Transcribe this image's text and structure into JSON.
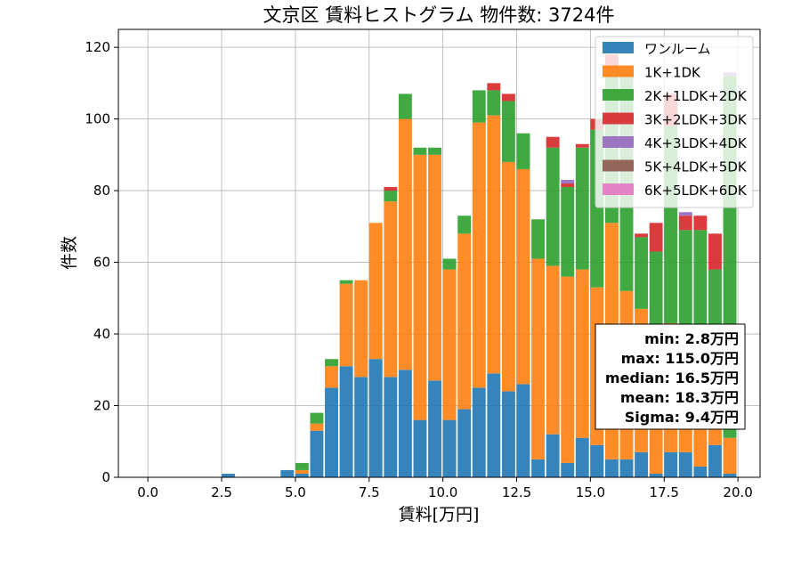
{
  "chart_data": {
    "type": "bar",
    "stacked": true,
    "title": "文京区 賃料ヒストグラム 物件数: 3724件",
    "xlabel": "賃料[万円]",
    "ylabel": "件数",
    "xlim": [
      -1,
      20.75
    ],
    "ylim": [
      0,
      125
    ],
    "xticks": [
      0,
      2.5,
      5,
      7.5,
      10,
      12.5,
      15,
      17.5,
      20
    ],
    "xtick_labels": [
      "0.0",
      "2.5",
      "5.0",
      "7.5",
      "10.0",
      "12.5",
      "15.0",
      "17.5",
      "20.0"
    ],
    "yticks": [
      0,
      20,
      40,
      60,
      80,
      100,
      120
    ],
    "ytick_labels": [
      "0",
      "20",
      "40",
      "60",
      "80",
      "100",
      "120"
    ],
    "grid": true,
    "legend_position": "top-right",
    "bin_width": 0.5,
    "bins": [
      2.5,
      4.5,
      5.0,
      5.5,
      6.0,
      6.5,
      7.0,
      7.5,
      8.0,
      8.5,
      9.0,
      9.5,
      10.0,
      10.5,
      11.0,
      11.5,
      12.0,
      12.5,
      13.0,
      13.5,
      14.0,
      14.5,
      15.0,
      15.5,
      16.0,
      16.5,
      17.0,
      17.5,
      18.0,
      18.5,
      19.0,
      19.5
    ],
    "series": [
      {
        "name": "ワンルーム",
        "color": "#1f77b4",
        "values": [
          1,
          2,
          1,
          13,
          25,
          31,
          28,
          33,
          28,
          30,
          16,
          27,
          16,
          19,
          25,
          29,
          24,
          26,
          5,
          12,
          4,
          11,
          9,
          5,
          5,
          7,
          1,
          7,
          7,
          3,
          9,
          1
        ]
      },
      {
        "name": "1K+1DK",
        "color": "#ff7f0e",
        "values": [
          0,
          0,
          1,
          2,
          6,
          23,
          27,
          38,
          49,
          70,
          74,
          63,
          42,
          49,
          74,
          72,
          64,
          60,
          56,
          47,
          52,
          47,
          44,
          66,
          47,
          40,
          40,
          36,
          22,
          29,
          12,
          10
        ]
      },
      {
        "name": "2K+1LDK+2DK",
        "color": "#2ca02c",
        "values": [
          0,
          0,
          2,
          3,
          2,
          1,
          0,
          0,
          3,
          7,
          2,
          2,
          3,
          5,
          9,
          7,
          17,
          10,
          11,
          33,
          25,
          34,
          44,
          43,
          60,
          20,
          22,
          55,
          40,
          37,
          37,
          101
        ]
      },
      {
        "name": "3K+2LDK+3DK",
        "color": "#d62728",
        "values": [
          0,
          0,
          0,
          0,
          0,
          0,
          0,
          0,
          1,
          0,
          0,
          0,
          0,
          0,
          0,
          2,
          2,
          0,
          0,
          3,
          1,
          1,
          3,
          4,
          1,
          1,
          8,
          9,
          4,
          4,
          10,
          0
        ]
      },
      {
        "name": "4K+3LDK+4DK",
        "color": "#9467bd",
        "values": [
          0,
          0,
          0,
          0,
          0,
          0,
          0,
          0,
          0,
          0,
          0,
          0,
          0,
          0,
          0,
          0,
          0,
          0,
          0,
          0,
          1,
          0,
          0,
          0,
          0,
          0,
          0,
          0,
          1,
          0,
          0,
          1
        ]
      },
      {
        "name": "5K+4LDK+5DK",
        "color": "#8c564b",
        "values": [
          0,
          0,
          0,
          0,
          0,
          0,
          0,
          0,
          0,
          0,
          0,
          0,
          0,
          0,
          0,
          0,
          0,
          0,
          0,
          0,
          0,
          0,
          0,
          0,
          0,
          0,
          0,
          0,
          0,
          0,
          0,
          0
        ]
      },
      {
        "name": "6K+5LDK+6DK",
        "color": "#e377c2",
        "values": [
          0,
          0,
          0,
          0,
          0,
          0,
          0,
          0,
          0,
          0,
          0,
          0,
          0,
          0,
          0,
          0,
          0,
          0,
          0,
          0,
          0,
          0,
          0,
          0,
          0,
          0,
          0,
          0,
          0,
          0,
          0,
          0
        ]
      }
    ],
    "stats_box": [
      "min: 2.8万円",
      "max: 115.0万円",
      "median: 16.5万円",
      "mean: 18.3万円",
      "Sigma: 9.4万円"
    ]
  }
}
